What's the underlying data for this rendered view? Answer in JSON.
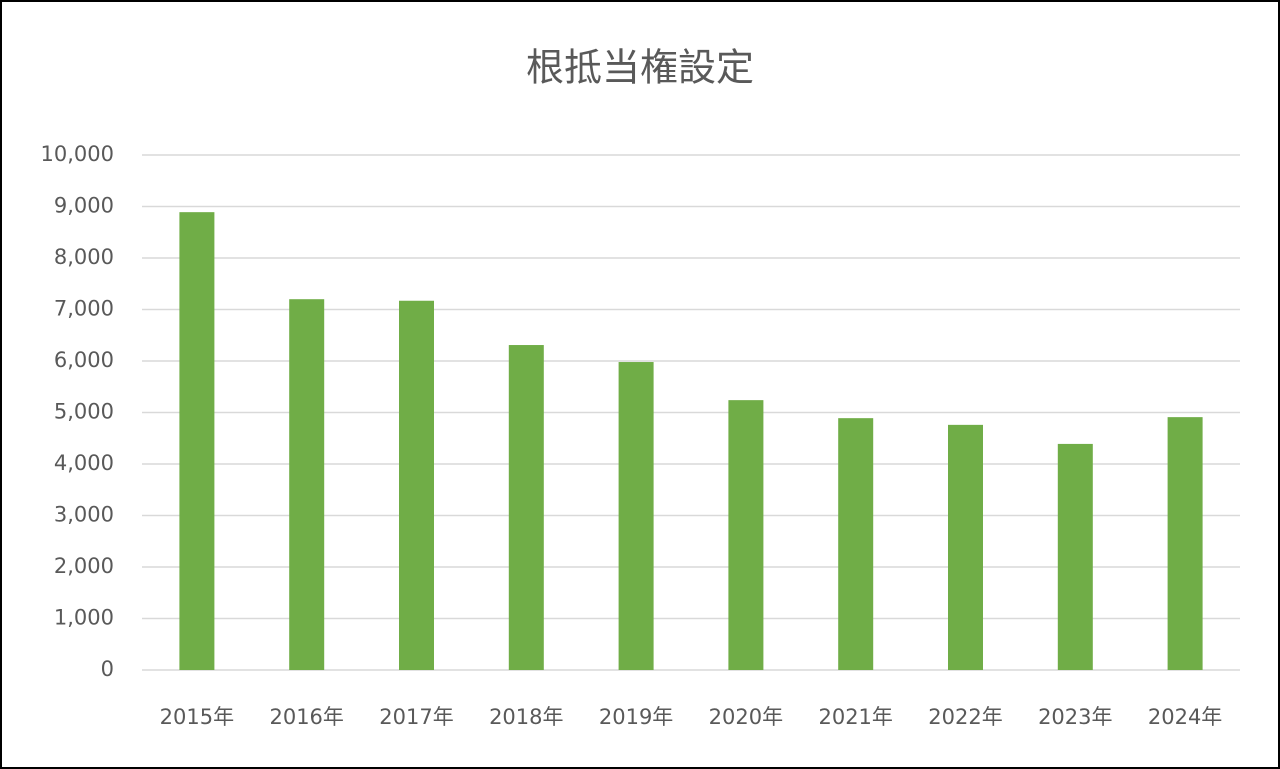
{
  "chart_data": {
    "type": "bar",
    "title": "根抵当権設定",
    "categories": [
      "2015年",
      "2016年",
      "2017年",
      "2018年",
      "2019年",
      "2020年",
      "2021年",
      "2022年",
      "2023年",
      "2024年"
    ],
    "values": [
      8890,
      7200,
      7170,
      6310,
      5980,
      5240,
      4890,
      4760,
      4390,
      4910
    ],
    "color": "#70ad47",
    "ylim": [
      0,
      10000
    ],
    "yticks": [
      0,
      {
        "value": 1000,
        "label": "1,000"
      },
      {
        "value": 2000,
        "label": "2,000"
      },
      {
        "value": 3000,
        "label": "3,000"
      },
      {
        "value": 4000,
        "label": "4,000"
      },
      {
        "value": 5000,
        "label": "5,000"
      },
      {
        "value": 6000,
        "label": "6,000"
      },
      {
        "value": 7000,
        "label": "7,000"
      },
      {
        "value": 8000,
        "label": "8,000"
      },
      {
        "value": 9000,
        "label": "9,000"
      },
      {
        "value": 10000,
        "label": "10,000"
      }
    ],
    "grid": true
  }
}
